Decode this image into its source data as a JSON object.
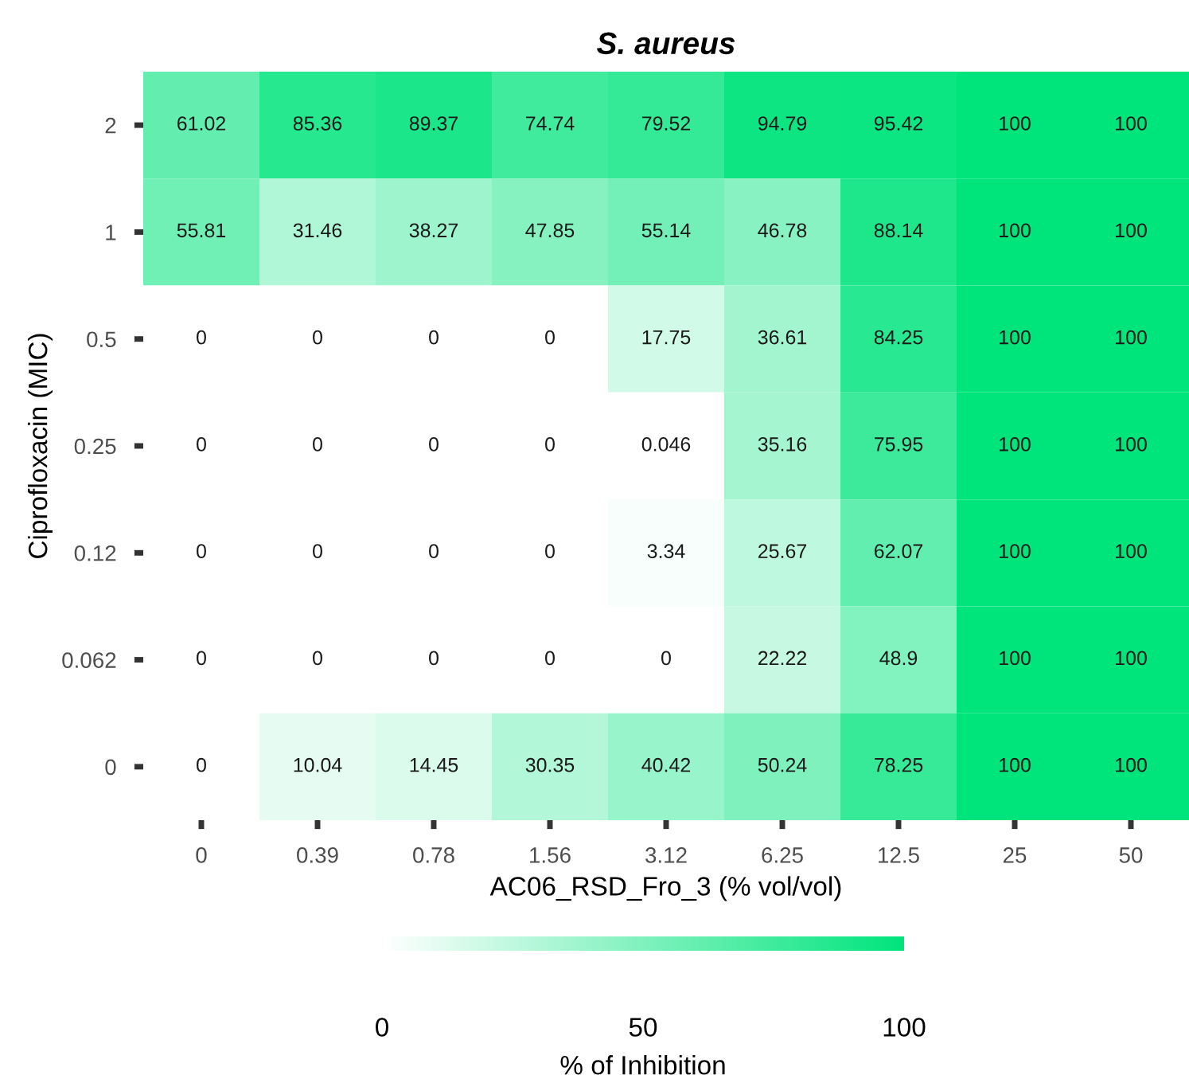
{
  "chart_data": {
    "type": "heatmap",
    "title": "S. aureus",
    "xlabel": "AC06_RSD_Fro_3 (% vol/vol)",
    "ylabel": "Ciprofloxacin (MIC)",
    "clabel": "% of Inhibition",
    "categories": [
      "0",
      "0.39",
      "0.78",
      "1.56",
      "3.12",
      "6.25",
      "12.5",
      "25",
      "50"
    ],
    "y_categories": [
      "2",
      "1",
      "0.5",
      "0.25",
      "0.12",
      "0.062",
      "0"
    ],
    "cells": [
      [
        61.02,
        85.36,
        89.37,
        74.74,
        79.52,
        94.79,
        95.42,
        100,
        100
      ],
      [
        55.81,
        31.46,
        38.27,
        47.85,
        55.14,
        46.78,
        88.14,
        100,
        100
      ],
      [
        0,
        0,
        0,
        0,
        17.75,
        36.61,
        84.25,
        100,
        100
      ],
      [
        0,
        0,
        0,
        0,
        0.046,
        35.16,
        75.95,
        100,
        100
      ],
      [
        0,
        0,
        0,
        0,
        3.34,
        25.67,
        62.07,
        100,
        100
      ],
      [
        0,
        0,
        0,
        0,
        0,
        22.22,
        48.9,
        100,
        100
      ],
      [
        0,
        10.04,
        14.45,
        30.35,
        40.42,
        50.24,
        78.25,
        100,
        100
      ]
    ],
    "colors": [
      "#ffffff",
      "#00e47c"
    ],
    "clim": [
      0,
      100
    ],
    "cticks": [
      0,
      50,
      100
    ],
    "data_labels": true,
    "grid": false
  }
}
